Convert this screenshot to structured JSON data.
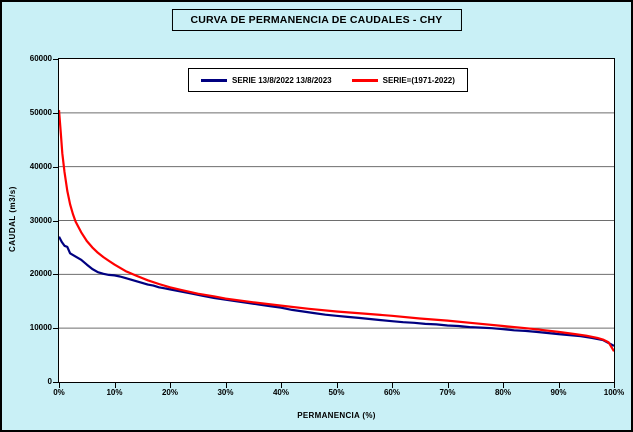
{
  "colors": {
    "page_background": "#c9f0f6",
    "plot_background": "#ffffff",
    "border": "#000000",
    "gridline": "#6e6e6e",
    "series_blue": "#000080",
    "series_red": "#ff0000"
  },
  "chart_data": {
    "type": "line",
    "title": "CURVA DE PERMANENCIA DE CAUDALES - CHY",
    "xlabel": "PERMANENCIA (%)",
    "ylabel": "CAUDAL (m3/s)",
    "xlim": [
      0,
      100
    ],
    "ylim": [
      0,
      60000
    ],
    "grid": "horizontal",
    "legend_position": "top-center-inside",
    "xticks": [
      0,
      10,
      20,
      30,
      40,
      50,
      60,
      70,
      80,
      90,
      100
    ],
    "xtick_labels": [
      "0%",
      "10%",
      "20%",
      "30%",
      "40%",
      "50%",
      "60%",
      "70%",
      "80%",
      "90%",
      "100%"
    ],
    "yticks": [
      0,
      10000,
      20000,
      30000,
      40000,
      50000,
      60000
    ],
    "ytick_labels": [
      "0",
      "10000",
      "20000",
      "30000",
      "40000",
      "50000",
      "60000"
    ],
    "series": [
      {
        "name": "SERIE 13/8/2022 13/8/2023",
        "color": "#000080",
        "points": [
          [
            0,
            27000
          ],
          [
            0.5,
            26000
          ],
          [
            1,
            25300
          ],
          [
            1.5,
            25100
          ],
          [
            2,
            23900
          ],
          [
            3,
            23300
          ],
          [
            4,
            22700
          ],
          [
            5,
            21800
          ],
          [
            6,
            21000
          ],
          [
            7,
            20400
          ],
          [
            8,
            20100
          ],
          [
            9,
            19900
          ],
          [
            10,
            19800
          ],
          [
            11,
            19600
          ],
          [
            12,
            19300
          ],
          [
            13,
            19000
          ],
          [
            14,
            18700
          ],
          [
            15,
            18400
          ],
          [
            16,
            18100
          ],
          [
            17,
            17900
          ],
          [
            18,
            17600
          ],
          [
            19,
            17400
          ],
          [
            20,
            17200
          ],
          [
            22,
            16800
          ],
          [
            24,
            16400
          ],
          [
            26,
            16000
          ],
          [
            28,
            15600
          ],
          [
            30,
            15300
          ],
          [
            32,
            15000
          ],
          [
            34,
            14700
          ],
          [
            36,
            14400
          ],
          [
            38,
            14100
          ],
          [
            40,
            13800
          ],
          [
            42,
            13400
          ],
          [
            44,
            13100
          ],
          [
            46,
            12800
          ],
          [
            48,
            12500
          ],
          [
            50,
            12300
          ],
          [
            52,
            12100
          ],
          [
            54,
            11900
          ],
          [
            56,
            11700
          ],
          [
            58,
            11500
          ],
          [
            60,
            11300
          ],
          [
            62,
            11100
          ],
          [
            64,
            11000
          ],
          [
            66,
            10800
          ],
          [
            68,
            10700
          ],
          [
            70,
            10500
          ],
          [
            72,
            10400
          ],
          [
            74,
            10200
          ],
          [
            76,
            10100
          ],
          [
            78,
            10000
          ],
          [
            80,
            9800
          ],
          [
            82,
            9600
          ],
          [
            84,
            9500
          ],
          [
            86,
            9300
          ],
          [
            88,
            9100
          ],
          [
            90,
            8900
          ],
          [
            92,
            8700
          ],
          [
            94,
            8500
          ],
          [
            96,
            8200
          ],
          [
            98,
            7800
          ],
          [
            100,
            6700
          ]
        ]
      },
      {
        "name": "SERIE=(1971-2022)",
        "color": "#ff0000",
        "points": [
          [
            0,
            50500
          ],
          [
            0.3,
            46500
          ],
          [
            0.6,
            42500
          ],
          [
            1,
            39000
          ],
          [
            1.5,
            35500
          ],
          [
            2,
            33000
          ],
          [
            2.5,
            31200
          ],
          [
            3,
            29800
          ],
          [
            4,
            27800
          ],
          [
            5,
            26200
          ],
          [
            6,
            25000
          ],
          [
            7,
            24000
          ],
          [
            8,
            23200
          ],
          [
            9,
            22500
          ],
          [
            10,
            21800
          ],
          [
            12,
            20600
          ],
          [
            14,
            19700
          ],
          [
            16,
            18900
          ],
          [
            18,
            18200
          ],
          [
            20,
            17600
          ],
          [
            22,
            17100
          ],
          [
            25,
            16400
          ],
          [
            28,
            15900
          ],
          [
            30,
            15500
          ],
          [
            35,
            14800
          ],
          [
            40,
            14200
          ],
          [
            45,
            13600
          ],
          [
            50,
            13100
          ],
          [
            55,
            12700
          ],
          [
            60,
            12300
          ],
          [
            65,
            11800
          ],
          [
            70,
            11400
          ],
          [
            75,
            10900
          ],
          [
            80,
            10400
          ],
          [
            85,
            9900
          ],
          [
            90,
            9300
          ],
          [
            93,
            8900
          ],
          [
            95,
            8600
          ],
          [
            97,
            8200
          ],
          [
            98,
            7900
          ],
          [
            99,
            7400
          ],
          [
            100,
            5700
          ]
        ]
      }
    ]
  }
}
